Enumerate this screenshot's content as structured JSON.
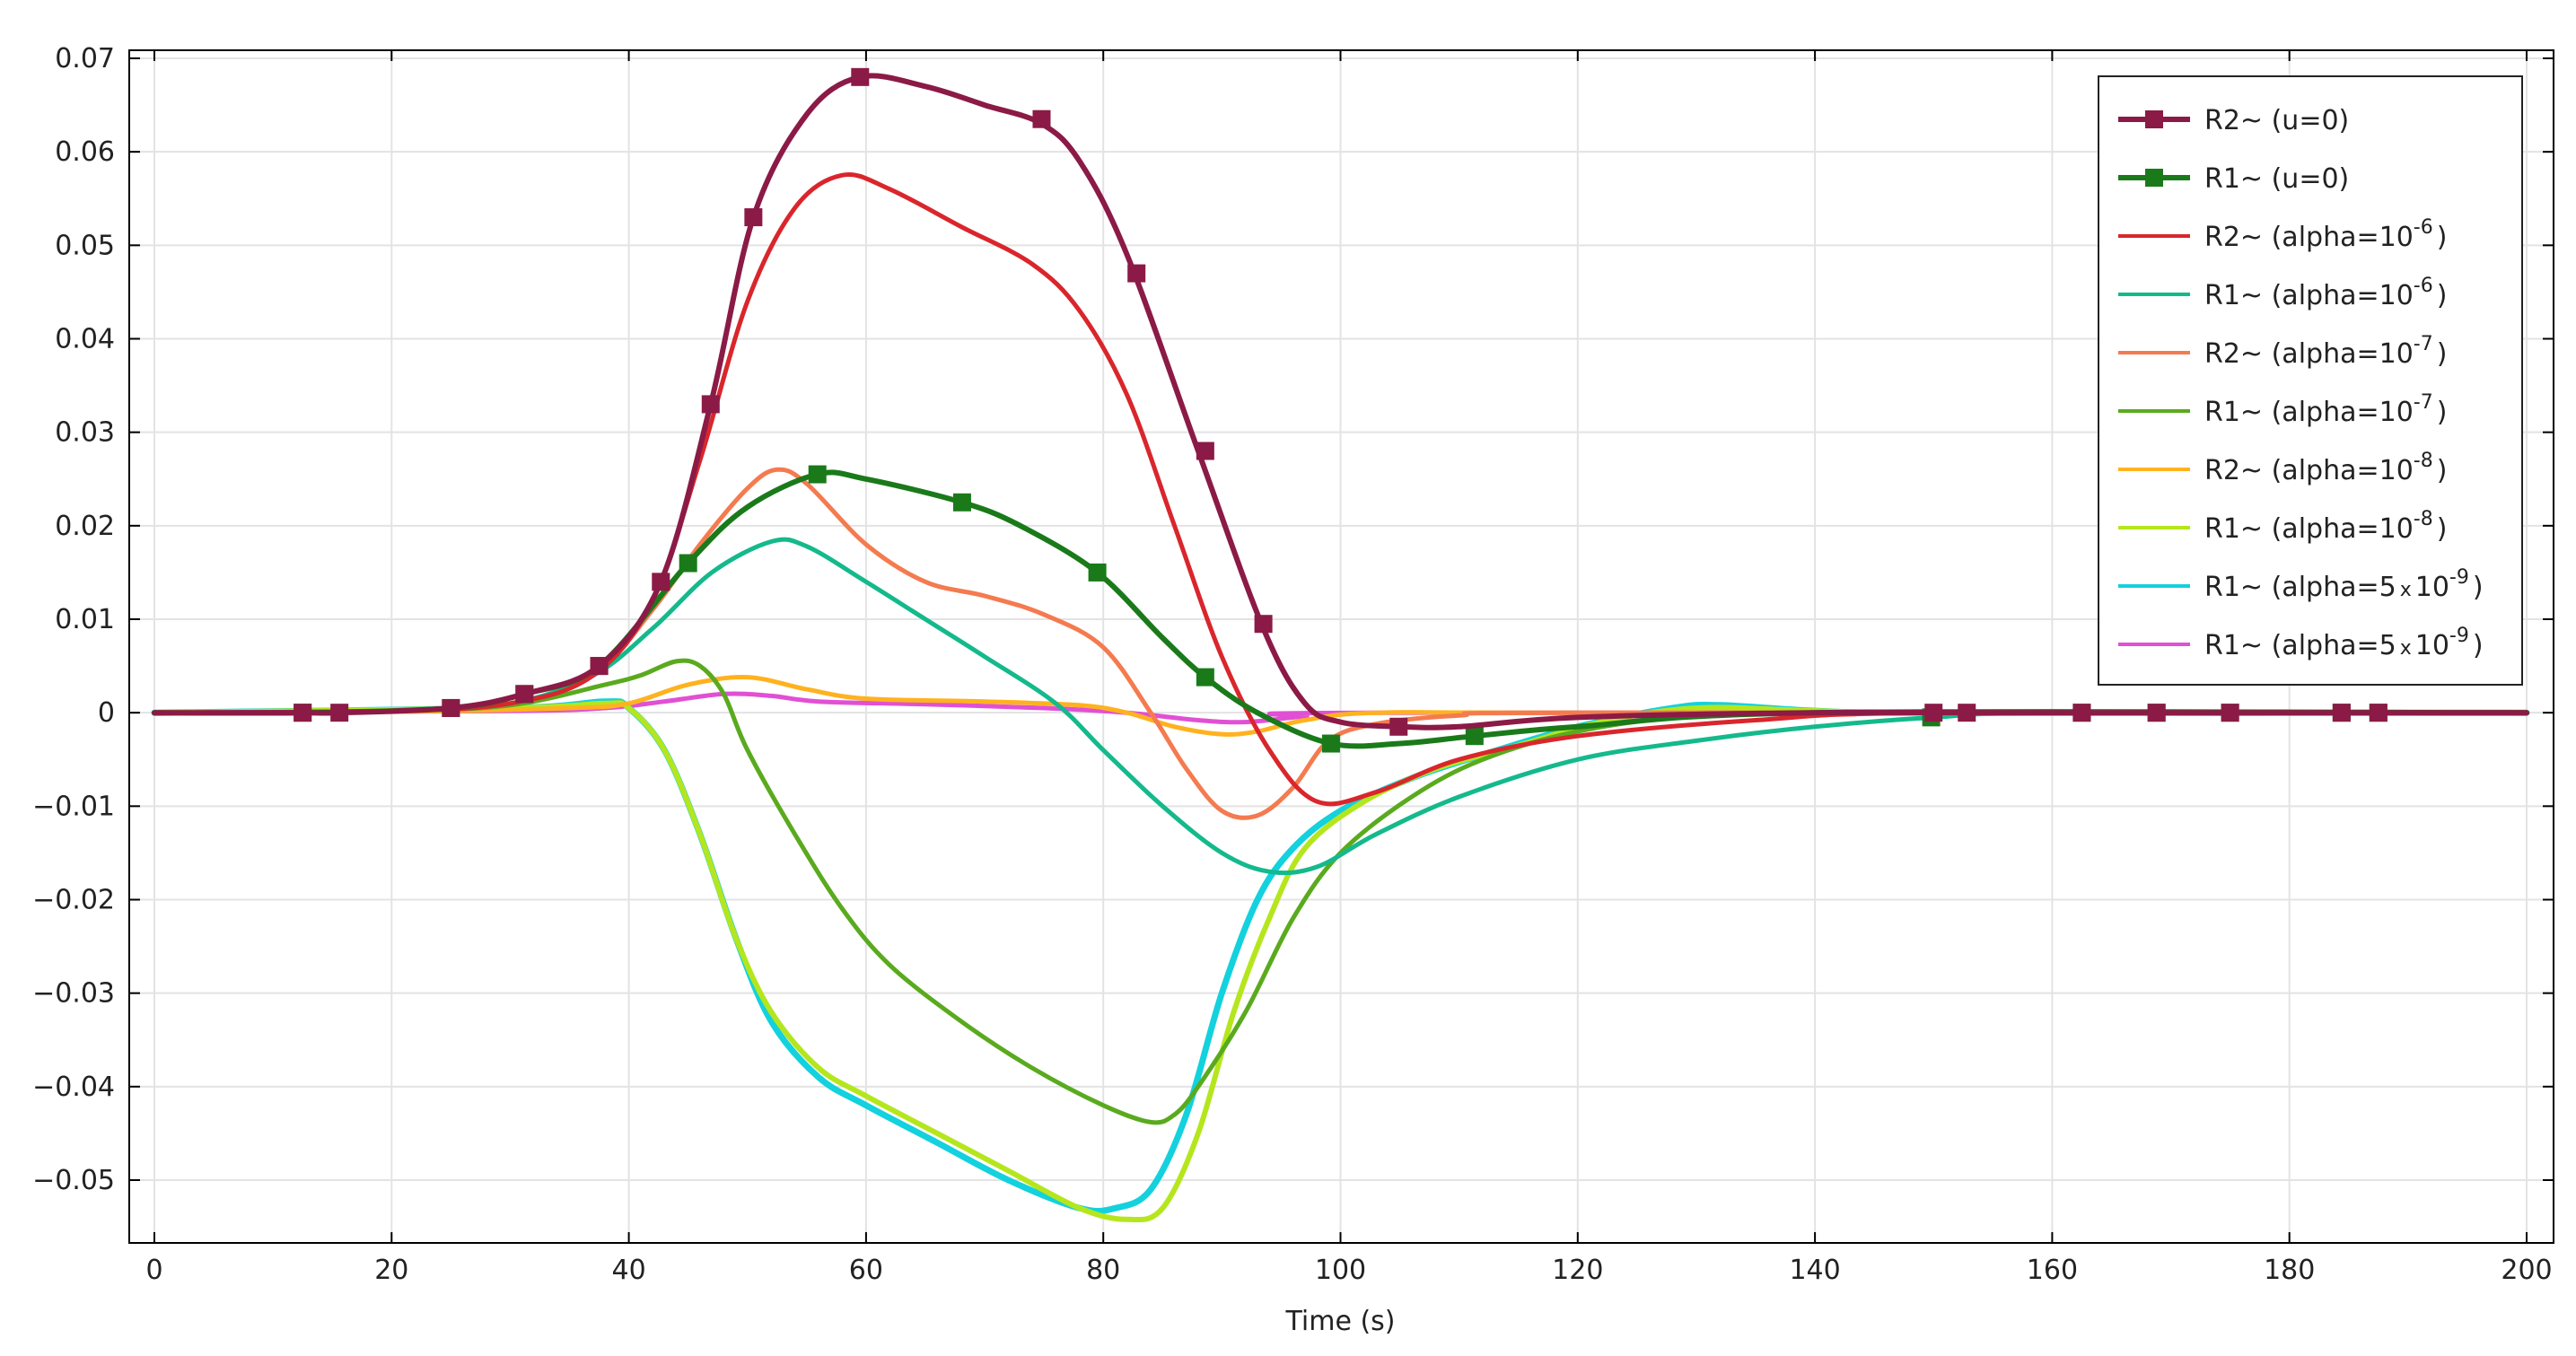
{
  "chart_data": {
    "type": "line",
    "xlabel": "Time (s)",
    "ylabel": "",
    "xlim": [
      -2,
      202
    ],
    "ylim": [
      -0.057,
      0.071
    ],
    "grid": true,
    "legend_position": "top-right",
    "x_ticks": [
      0,
      20,
      40,
      60,
      80,
      100,
      120,
      140,
      160,
      180,
      200
    ],
    "x_tick_labels": [
      "0",
      "20",
      "40",
      "60",
      "80",
      "100",
      "120",
      "140",
      "160",
      "180",
      "200"
    ],
    "y_ticks": [
      0.07,
      0.06,
      0.05,
      0.04,
      0.03,
      0.02,
      0.01,
      0,
      -0.01,
      -0.02,
      -0.03,
      -0.04,
      -0.05
    ],
    "y_tick_labels": [
      "0.07",
      "0.06",
      "0.05",
      "0.04",
      "0.03",
      "0.02",
      "0.01",
      "0",
      "−0.01",
      "−0.02",
      "−0.03",
      "−0.04",
      "−0.05"
    ],
    "series": [
      {
        "name": "R2~ (u=0)",
        "legend_prefix": "R2~ (u=0)",
        "legend_sup": "",
        "legend_suffix": "",
        "color": "#8b1a46",
        "width": 3,
        "marker": "square",
        "points": [
          [
            0,
            0
          ],
          [
            12.5,
            0
          ],
          [
            15.6,
            0
          ],
          [
            25,
            0.0005
          ],
          [
            31.2,
            0.002
          ],
          [
            37.5,
            0.005
          ],
          [
            42.7,
            0.014
          ],
          [
            46.9,
            0.033
          ],
          [
            50.5,
            0.053
          ],
          [
            55,
            0.064
          ],
          [
            59.5,
            0.068
          ],
          [
            65,
            0.067
          ],
          [
            70,
            0.065
          ],
          [
            74.8,
            0.063
          ],
          [
            78,
            0.059
          ],
          [
            82,
            0.049
          ],
          [
            88,
            0.028
          ],
          [
            93.5,
            0.009
          ],
          [
            97,
            0.001
          ],
          [
            100,
            -0.001
          ],
          [
            105,
            -0.0015
          ],
          [
            110,
            -0.0015
          ],
          [
            120,
            -0.0005
          ],
          [
            140,
            0
          ],
          [
            160,
            0
          ],
          [
            200,
            0
          ]
        ],
        "markers": [
          [
            12.5,
            0
          ],
          [
            15.6,
            0
          ],
          [
            25,
            0.0005
          ],
          [
            31.2,
            0.002
          ],
          [
            37.5,
            0.005
          ],
          [
            42.7,
            0.014
          ],
          [
            46.9,
            0.033
          ],
          [
            50.5,
            0.053
          ],
          [
            59.5,
            0.068
          ],
          [
            74.8,
            0.0635
          ],
          [
            82.8,
            0.047
          ],
          [
            88.6,
            0.028
          ],
          [
            93.5,
            0.0095
          ],
          [
            104.9,
            -0.0015
          ],
          [
            150,
            0
          ],
          [
            152.8,
            0
          ],
          [
            162.5,
            0
          ],
          [
            168.8,
            0
          ],
          [
            175,
            0
          ],
          [
            184.4,
            0
          ],
          [
            187.5,
            0
          ]
        ]
      },
      {
        "name": "R1~ (u=0)",
        "legend_prefix": "R1~ (u=0)",
        "legend_sup": "",
        "legend_suffix": "",
        "color": "#1a7a1a",
        "width": 3,
        "marker": "square",
        "points": [
          [
            0,
            0
          ],
          [
            12.5,
            0
          ],
          [
            25,
            0.0005
          ],
          [
            31.2,
            0.002
          ],
          [
            37.5,
            0.005
          ],
          [
            45,
            0.016
          ],
          [
            50,
            0.022
          ],
          [
            55.9,
            0.0255
          ],
          [
            60,
            0.025
          ],
          [
            68.1,
            0.0225
          ],
          [
            73,
            0.02
          ],
          [
            79.5,
            0.015
          ],
          [
            85,
            0.008
          ],
          [
            88.6,
            0.0038
          ],
          [
            93,
            0
          ],
          [
            99.2,
            -0.0033
          ],
          [
            105,
            -0.0033
          ],
          [
            111.3,
            -0.0025
          ],
          [
            120,
            -0.0015
          ],
          [
            140,
            0
          ],
          [
            200,
            0
          ]
        ],
        "markers": [
          [
            12.5,
            0
          ],
          [
            25,
            0.0005
          ],
          [
            31.2,
            0.002
          ],
          [
            37.5,
            0.005
          ],
          [
            45,
            0.016
          ],
          [
            55.9,
            0.0255
          ],
          [
            68.1,
            0.0225
          ],
          [
            79.5,
            0.015
          ],
          [
            88.6,
            0.0038
          ],
          [
            99.2,
            -0.0033
          ],
          [
            111.3,
            -0.0025
          ],
          [
            149.8,
            -0.0005
          ],
          [
            162.5,
            0
          ],
          [
            168.8,
            0
          ],
          [
            175,
            0
          ],
          [
            184.4,
            0
          ],
          [
            187.5,
            0
          ]
        ]
      },
      {
        "name": "R2~ (alpha=10^-6)",
        "legend_prefix": "R2~ (alpha=10",
        "legend_sup": "-6",
        "legend_suffix": ")",
        "color": "#d9262c",
        "width": 2.5,
        "marker": "none",
        "points": [
          [
            0,
            0
          ],
          [
            20,
            0.0002
          ],
          [
            30,
            0.001
          ],
          [
            37,
            0.004
          ],
          [
            42,
            0.012
          ],
          [
            46,
            0.027
          ],
          [
            50,
            0.044
          ],
          [
            54,
            0.054
          ],
          [
            58,
            0.0575
          ],
          [
            62,
            0.056
          ],
          [
            68,
            0.052
          ],
          [
            74,
            0.048
          ],
          [
            78,
            0.043
          ],
          [
            82,
            0.034
          ],
          [
            86,
            0.02
          ],
          [
            90,
            0.006
          ],
          [
            94,
            -0.004
          ],
          [
            98,
            -0.0095
          ],
          [
            103,
            -0.0085
          ],
          [
            110,
            -0.005
          ],
          [
            120,
            -0.0025
          ],
          [
            135,
            -0.0008
          ],
          [
            150,
            0
          ],
          [
            200,
            0
          ]
        ]
      },
      {
        "name": "R1~ (alpha=10^-6)",
        "legend_prefix": "R1~ (alpha=10",
        "legend_sup": "-6",
        "legend_suffix": ")",
        "color": "#14b98c",
        "width": 2.5,
        "marker": "none",
        "points": [
          [
            0,
            0
          ],
          [
            20,
            0.0002
          ],
          [
            30,
            0.001
          ],
          [
            37,
            0.004
          ],
          [
            42,
            0.009
          ],
          [
            47,
            0.015
          ],
          [
            52,
            0.0183
          ],
          [
            55,
            0.0178
          ],
          [
            60,
            0.014
          ],
          [
            65,
            0.01
          ],
          [
            70,
            0.006
          ],
          [
            76,
            0.001
          ],
          [
            80,
            -0.004
          ],
          [
            85,
            -0.01
          ],
          [
            90,
            -0.015
          ],
          [
            94,
            -0.017
          ],
          [
            98,
            -0.0165
          ],
          [
            103,
            -0.013
          ],
          [
            110,
            -0.009
          ],
          [
            120,
            -0.005
          ],
          [
            130,
            -0.003
          ],
          [
            140,
            -0.0015
          ],
          [
            150,
            -0.0005
          ],
          [
            160,
            0
          ],
          [
            200,
            0
          ]
        ]
      },
      {
        "name": "R2~ (alpha=10^-7)",
        "legend_prefix": "R2~ (alpha=10",
        "legend_sup": "-7",
        "legend_suffix": ")",
        "color": "#f47b4f",
        "width": 2.5,
        "marker": "none",
        "points": [
          [
            0,
            0
          ],
          [
            20,
            0.0002
          ],
          [
            30,
            0.001
          ],
          [
            37,
            0.004
          ],
          [
            42,
            0.011
          ],
          [
            46,
            0.018
          ],
          [
            50,
            0.024
          ],
          [
            52.5,
            0.026
          ],
          [
            55,
            0.0245
          ],
          [
            60,
            0.018
          ],
          [
            65,
            0.014
          ],
          [
            70,
            0.0125
          ],
          [
            75,
            0.0105
          ],
          [
            80,
            0.007
          ],
          [
            84,
            0
          ],
          [
            87,
            -0.006
          ],
          [
            90,
            -0.0105
          ],
          [
            93,
            -0.011
          ],
          [
            96,
            -0.008
          ],
          [
            99,
            -0.003
          ],
          [
            103,
            -0.0012
          ],
          [
            110,
            -0.0003
          ],
          [
            120,
            0
          ],
          [
            200,
            0
          ]
        ]
      },
      {
        "name": "R1~ (alpha=10^-7)",
        "legend_prefix": "R1~ (alpha=10",
        "legend_sup": "-7",
        "legend_suffix": ")",
        "color": "#5aaa1e",
        "width": 2.5,
        "marker": "none",
        "points": [
          [
            0,
            0
          ],
          [
            20,
            0.0002
          ],
          [
            30,
            0.0008
          ],
          [
            38,
            0.003
          ],
          [
            41,
            0.004
          ],
          [
            44,
            0.0055
          ],
          [
            46,
            0.005
          ],
          [
            48,
            0.002
          ],
          [
            50,
            -0.004
          ],
          [
            54,
            -0.013
          ],
          [
            58,
            -0.021
          ],
          [
            62,
            -0.027
          ],
          [
            68,
            -0.033
          ],
          [
            74,
            -0.038
          ],
          [
            80,
            -0.042
          ],
          [
            84,
            -0.0438
          ],
          [
            86,
            -0.043
          ],
          [
            88,
            -0.04
          ],
          [
            92,
            -0.032
          ],
          [
            96,
            -0.022
          ],
          [
            100,
            -0.015
          ],
          [
            106,
            -0.009
          ],
          [
            112,
            -0.005
          ],
          [
            120,
            -0.002
          ],
          [
            130,
            -0.0003
          ],
          [
            140,
            0
          ],
          [
            200,
            0
          ]
        ]
      },
      {
        "name": "R2~ (alpha=10^-8)",
        "legend_prefix": "R2~ (alpha=10",
        "legend_sup": "-8",
        "legend_suffix": ")",
        "color": "#ffb21f",
        "width": 2.5,
        "marker": "none",
        "points": [
          [
            0,
            0
          ],
          [
            20,
            0.0001
          ],
          [
            35,
            0.0005
          ],
          [
            40,
            0.001
          ],
          [
            45,
            0.003
          ],
          [
            50,
            0.0038
          ],
          [
            55,
            0.0025
          ],
          [
            60,
            0.0015
          ],
          [
            70,
            0.0012
          ],
          [
            78,
            0.0008
          ],
          [
            82,
            0
          ],
          [
            86,
            -0.0015
          ],
          [
            90,
            -0.0023
          ],
          [
            93,
            -0.002
          ],
          [
            97,
            -0.0008
          ],
          [
            103,
            0
          ],
          [
            120,
            0
          ],
          [
            200,
            0
          ]
        ]
      },
      {
        "name": "R1~ (alpha=10^-8)",
        "legend_prefix": "R1~ (alpha=10",
        "legend_sup": "-8",
        "legend_suffix": ")",
        "color": "#b5e61d",
        "width": 3,
        "marker": "none",
        "points": [
          [
            0,
            0
          ],
          [
            30,
            0.0005
          ],
          [
            38,
            0.001
          ],
          [
            40,
            0.0005
          ],
          [
            43,
            -0.004
          ],
          [
            46,
            -0.013
          ],
          [
            49,
            -0.024
          ],
          [
            52,
            -0.032
          ],
          [
            56,
            -0.038
          ],
          [
            60,
            -0.041
          ],
          [
            66,
            -0.045
          ],
          [
            72,
            -0.049
          ],
          [
            78,
            -0.053
          ],
          [
            82,
            -0.0542
          ],
          [
            85,
            -0.053
          ],
          [
            88,
            -0.045
          ],
          [
            91,
            -0.032
          ],
          [
            94,
            -0.022
          ],
          [
            97,
            -0.0145
          ],
          [
            102,
            -0.0095
          ],
          [
            108,
            -0.006
          ],
          [
            115,
            -0.0035
          ],
          [
            122,
            -0.001
          ],
          [
            130,
            0.0005
          ],
          [
            140,
            0.0002
          ],
          [
            150,
            0
          ],
          [
            200,
            0
          ]
        ]
      },
      {
        "name": "R1~ (alpha=5x10^-9)",
        "legend_prefix": "R1~ (alpha=5",
        "legend_times": "x",
        "legend_base": "10",
        "legend_sup": "-9",
        "legend_suffix": ")",
        "color": "#13d1dd",
        "width": 3.5,
        "marker": "none",
        "points": [
          [
            0,
            0
          ],
          [
            30,
            0.0005
          ],
          [
            38,
            0.0012
          ],
          [
            40,
            0.0005
          ],
          [
            43,
            -0.004
          ],
          [
            46,
            -0.013
          ],
          [
            49,
            -0.024
          ],
          [
            52,
            -0.033
          ],
          [
            56,
            -0.039
          ],
          [
            60,
            -0.042
          ],
          [
            66,
            -0.046
          ],
          [
            72,
            -0.05
          ],
          [
            78,
            -0.053
          ],
          [
            81,
            -0.053
          ],
          [
            84,
            -0.051
          ],
          [
            87,
            -0.043
          ],
          [
            90,
            -0.03
          ],
          [
            93,
            -0.02
          ],
          [
            96,
            -0.0145
          ],
          [
            100,
            -0.0105
          ],
          [
            106,
            -0.007
          ],
          [
            112,
            -0.0045
          ],
          [
            120,
            -0.0015
          ],
          [
            128,
            0.0005
          ],
          [
            132,
            0.0008
          ],
          [
            140,
            0.0002
          ],
          [
            150,
            0
          ],
          [
            200,
            0
          ]
        ]
      },
      {
        "name": "R1~ (alpha=5x10^-9)",
        "legend_prefix": "R1~ (alpha=5",
        "legend_times": "x",
        "legend_base": "10",
        "legend_sup": "-9",
        "legend_suffix": ")",
        "color": "#e150d4",
        "width": 2.5,
        "marker": "none",
        "points": [
          [
            0,
            0
          ],
          [
            30,
            0.0002
          ],
          [
            38,
            0.0005
          ],
          [
            43,
            0.0012
          ],
          [
            48,
            0.002
          ],
          [
            52,
            0.0018
          ],
          [
            56,
            0.0012
          ],
          [
            65,
            0.0009
          ],
          [
            75,
            0.0005
          ],
          [
            82,
            0
          ],
          [
            88,
            -0.0008
          ],
          [
            92,
            -0.001
          ],
          [
            97,
            -0.0004
          ],
          [
            103,
            0
          ],
          [
            200,
            0
          ]
        ]
      }
    ]
  }
}
